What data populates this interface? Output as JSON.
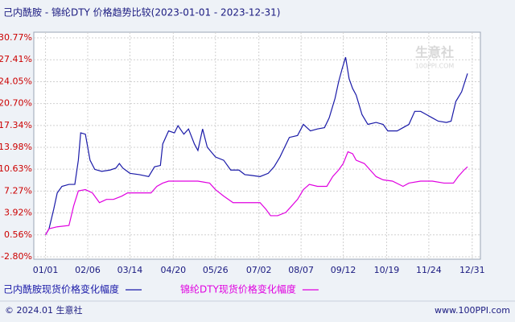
{
  "chart_data": {
    "type": "line",
    "title": "己内酰胺 - 锦纶DTY 价格趋势比较(2023-01-01 - 2023-12-31)",
    "watermark": [
      "生意社",
      "100PPI.COM"
    ],
    "footer_left": "© 2024.01 生意社",
    "footer_right": "www.100PPI.com",
    "xlim": [
      -10,
      371
    ],
    "xticks": [
      {
        "value": 0,
        "label": "01/01"
      },
      {
        "value": 36,
        "label": "02/06"
      },
      {
        "value": 72,
        "label": "03/14"
      },
      {
        "value": 109,
        "label": "04/20"
      },
      {
        "value": 145,
        "label": "05/26"
      },
      {
        "value": 182,
        "label": "07/02"
      },
      {
        "value": 218,
        "label": "08/07"
      },
      {
        "value": 254,
        "label": "09/12"
      },
      {
        "value": 291,
        "label": "10/19"
      },
      {
        "value": 327,
        "label": "11/24"
      },
      {
        "value": 364,
        "label": "12/31"
      }
    ],
    "ylim": [
      -2.8,
      30.77
    ],
    "yticks": [
      {
        "value": -2.8,
        "label": "-2.80%"
      },
      {
        "value": 0.56,
        "label": "0.56%"
      },
      {
        "value": 3.92,
        "label": "3.92%"
      },
      {
        "value": 7.27,
        "label": "7.27%"
      },
      {
        "value": 10.63,
        "label": "10.63%"
      },
      {
        "value": 13.98,
        "label": "13.98%"
      },
      {
        "value": 17.34,
        "label": "17.34%"
      },
      {
        "value": 20.7,
        "label": "20.70%"
      },
      {
        "value": 24.05,
        "label": "24.05%"
      },
      {
        "value": 27.41,
        "label": "27.41%"
      },
      {
        "value": 30.77,
        "label": "30.77%"
      }
    ],
    "grid": true,
    "series": [
      {
        "name": "己内酰胺现货价格变化幅度",
        "color": "#1a1aa8",
        "x": [
          0,
          3,
          7,
          10,
          14,
          20,
          25,
          28,
          30,
          34,
          38,
          42,
          48,
          55,
          60,
          63,
          66,
          72,
          80,
          88,
          93,
          98,
          100,
          105,
          110,
          113,
          118,
          122,
          127,
          130,
          134,
          138,
          145,
          152,
          158,
          165,
          170,
          175,
          183,
          190,
          195,
          200,
          204,
          208,
          215,
          220,
          226,
          232,
          238,
          242,
          247,
          250,
          253,
          256,
          259,
          262,
          265,
          270,
          275,
          282,
          288,
          292,
          300,
          305,
          310,
          315,
          320,
          325,
          330,
          335,
          342,
          346,
          350,
          355,
          360
        ],
        "values": [
          0.56,
          1.5,
          4.5,
          7.0,
          8.0,
          8.3,
          8.3,
          12,
          16.2,
          16.0,
          12,
          10.6,
          10.3,
          10.5,
          10.8,
          11.5,
          10.8,
          10.0,
          9.8,
          9.5,
          11.0,
          11.2,
          14.5,
          16.5,
          16.2,
          17.3,
          16.0,
          16.8,
          14.5,
          13.5,
          16.8,
          14.0,
          12.5,
          12.0,
          10.5,
          10.5,
          9.8,
          9.7,
          9.5,
          10.0,
          11.0,
          12.5,
          14.0,
          15.5,
          15.8,
          17.5,
          16.5,
          16.8,
          17.0,
          18.5,
          21.5,
          24.0,
          26.0,
          27.8,
          24.5,
          23.0,
          22.0,
          19.0,
          17.5,
          17.8,
          17.5,
          16.5,
          16.5,
          17.0,
          17.5,
          19.5,
          19.5,
          19.0,
          18.5,
          18.0,
          17.8,
          18.0,
          21.0,
          22.5,
          25.3
        ]
      },
      {
        "name": "锦纶DTY现货价格变化幅度",
        "color": "#e000e0",
        "x": [
          0,
          3,
          10,
          20,
          24,
          28,
          34,
          40,
          46,
          52,
          58,
          65,
          70,
          80,
          90,
          95,
          100,
          105,
          130,
          140,
          145,
          152,
          160,
          168,
          175,
          183,
          188,
          192,
          198,
          205,
          210,
          215,
          220,
          225,
          232,
          240,
          245,
          250,
          254,
          258,
          262,
          265,
          272,
          277,
          282,
          288,
          296,
          305,
          310,
          320,
          330,
          340,
          348,
          352,
          357,
          360
        ],
        "values": [
          0.56,
          1.5,
          1.8,
          2.0,
          5.0,
          7.3,
          7.5,
          7.0,
          5.5,
          6.0,
          6.0,
          6.5,
          7.0,
          7.0,
          7.0,
          8.0,
          8.5,
          8.8,
          8.8,
          8.5,
          7.5,
          6.5,
          5.5,
          5.5,
          5.5,
          5.5,
          4.5,
          3.5,
          3.5,
          4.0,
          5.0,
          6.0,
          7.5,
          8.3,
          8.0,
          8.0,
          9.5,
          10.5,
          11.5,
          13.3,
          13.0,
          12.0,
          11.5,
          10.5,
          9.5,
          9.0,
          8.8,
          8.0,
          8.5,
          8.8,
          8.8,
          8.5,
          8.5,
          9.5,
          10.5,
          11.0
        ]
      }
    ]
  }
}
